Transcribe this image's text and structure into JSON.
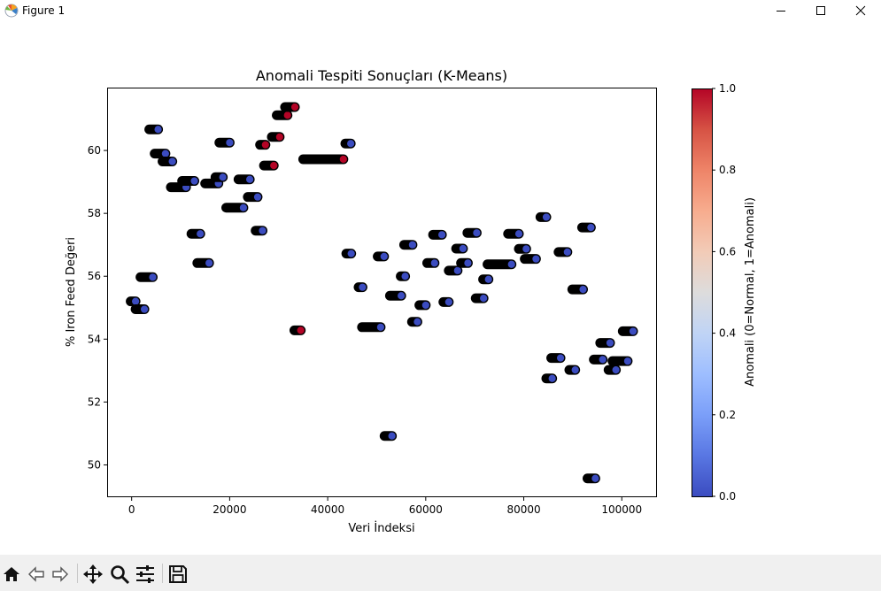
{
  "window": {
    "title": "Figure 1"
  },
  "toolbar": {
    "tools": [
      "home-icon",
      "back-icon",
      "forward-icon",
      "pan-icon",
      "zoom-icon",
      "configure-subplots-icon",
      "save-icon"
    ]
  },
  "chart_data": {
    "type": "scatter",
    "title": "Anomali Tespiti Sonuçları (K-Means)",
    "xlabel": "Veri İndeksi",
    "ylabel": "% Iron Feed Değeri",
    "xlim": [
      -5000,
      107000
    ],
    "ylim": [
      49.0,
      62.0
    ],
    "xticks": [
      0,
      20000,
      40000,
      60000,
      80000,
      100000
    ],
    "yticks": [
      50,
      52,
      54,
      56,
      58,
      60
    ],
    "grid": false,
    "colorbar": {
      "label": "Anomali (0=Normal, 1=Anomali)",
      "min": 0.0,
      "max": 1.0,
      "ticks": [
        "0.0",
        "0.2",
        "0.4",
        "0.6",
        "0.8",
        "1.0"
      ],
      "colormap": "coolwarm"
    },
    "colors": {
      "normal": "#3b4cc0",
      "anomaly": "#b40426",
      "edge": "#000000"
    },
    "series": [
      {
        "label": "normal",
        "anomaly": 0,
        "segments": [
          [
            -200,
            800,
            55.2
          ],
          [
            800,
            2600,
            54.95
          ],
          [
            1800,
            4300,
            55.97
          ],
          [
            3600,
            5400,
            60.67
          ],
          [
            4700,
            6900,
            59.9
          ],
          [
            6300,
            8300,
            59.65
          ],
          [
            8000,
            11100,
            58.83
          ],
          [
            10300,
            12800,
            59.03
          ],
          [
            12200,
            14000,
            57.35
          ],
          [
            13400,
            15800,
            56.42
          ],
          [
            15000,
            17700,
            58.95
          ],
          [
            17100,
            18600,
            59.15
          ],
          [
            17900,
            20000,
            60.25
          ],
          [
            19300,
            22800,
            58.18
          ],
          [
            21800,
            24100,
            59.08
          ],
          [
            23700,
            25700,
            58.52
          ],
          [
            25300,
            26700,
            57.45
          ],
          [
            35000,
            43000,
            59.72
          ],
          [
            43600,
            44700,
            60.22
          ],
          [
            43800,
            44800,
            56.72
          ],
          [
            46300,
            47100,
            55.65
          ],
          [
            47000,
            50800,
            54.38
          ],
          [
            50200,
            51500,
            56.63
          ],
          [
            51600,
            53100,
            50.92
          ],
          [
            52700,
            55000,
            55.38
          ],
          [
            54900,
            55800,
            56.0
          ],
          [
            55600,
            57300,
            57.0
          ],
          [
            57200,
            58300,
            54.55
          ],
          [
            58700,
            60000,
            55.08
          ],
          [
            60300,
            61800,
            56.42
          ],
          [
            61500,
            63300,
            57.32
          ],
          [
            63600,
            64700,
            55.18
          ],
          [
            64700,
            66500,
            56.18
          ],
          [
            66200,
            67600,
            56.88
          ],
          [
            67200,
            68600,
            56.42
          ],
          [
            68500,
            70400,
            57.38
          ],
          [
            70200,
            71800,
            55.3
          ],
          [
            71700,
            72800,
            55.9
          ],
          [
            72600,
            77500,
            56.38
          ],
          [
            76800,
            79000,
            57.35
          ],
          [
            79000,
            80500,
            56.87
          ],
          [
            80200,
            82500,
            56.55
          ],
          [
            83400,
            84600,
            57.88
          ],
          [
            84600,
            85800,
            52.75
          ],
          [
            85600,
            87500,
            53.4
          ],
          [
            87100,
            88900,
            56.77
          ],
          [
            89300,
            90500,
            53.02
          ],
          [
            89900,
            92100,
            55.58
          ],
          [
            91900,
            93700,
            57.55
          ],
          [
            93000,
            94600,
            49.57
          ],
          [
            94300,
            96100,
            53.35
          ],
          [
            95600,
            97600,
            53.88
          ],
          [
            97300,
            98800,
            53.02
          ],
          [
            98100,
            101200,
            53.3
          ],
          [
            100200,
            102300,
            54.25
          ]
        ]
      },
      {
        "label": "anomaly",
        "anomaly": 1,
        "segments": [
          [
            26200,
            27300,
            60.18
          ],
          [
            27000,
            29000,
            59.52
          ],
          [
            28600,
            30200,
            60.43
          ],
          [
            29600,
            31800,
            61.12
          ],
          [
            31300,
            33300,
            61.38
          ],
          [
            33200,
            34500,
            54.28
          ],
          [
            42200,
            43200,
            59.72
          ]
        ]
      }
    ]
  }
}
